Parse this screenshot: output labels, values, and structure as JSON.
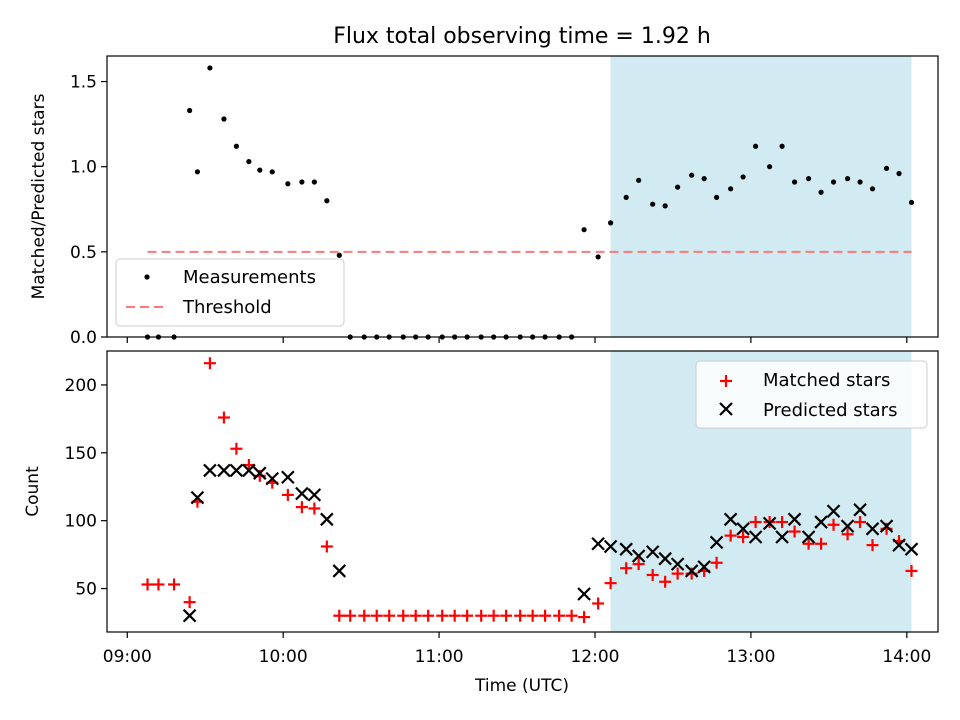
{
  "chart_data": [
    {
      "id": "top",
      "type": "scatter",
      "title": "Flux total observing time = 1.92 h",
      "xlabel": "",
      "ylabel": "Matched/Predicted stars",
      "xlim_hours": [
        8.87,
        14.2
      ],
      "ylim": [
        0,
        1.65
      ],
      "yticks": [
        0.0,
        0.5,
        1.0,
        1.5
      ],
      "ytick_labels": [
        "0.0",
        "0.5",
        "1.0",
        "1.5"
      ],
      "shaded_region_hours": [
        12.1,
        14.03
      ],
      "threshold": {
        "value": 0.5,
        "x_range_hours": [
          9.13,
          14.03
        ],
        "name": "Threshold",
        "color": "#ff7777"
      },
      "legend": {
        "placement": "lower-left",
        "entries": [
          "Measurements",
          "Threshold"
        ]
      },
      "series": [
        {
          "name": "Measurements",
          "color": "#000000",
          "x_hours": [
            9.13,
            9.2,
            9.3,
            9.4,
            9.45,
            9.53,
            9.62,
            9.7,
            9.78,
            9.85,
            9.93,
            10.03,
            10.12,
            10.2,
            10.28,
            10.36,
            10.43,
            10.52,
            10.6,
            10.68,
            10.77,
            10.85,
            10.93,
            11.02,
            11.1,
            11.18,
            11.27,
            11.35,
            11.43,
            11.52,
            11.6,
            11.68,
            11.77,
            11.85,
            11.93,
            12.02,
            12.1,
            12.2,
            12.28,
            12.37,
            12.45,
            12.53,
            12.62,
            12.7,
            12.78,
            12.87,
            12.95,
            13.03,
            13.12,
            13.2,
            13.28,
            13.37,
            13.45,
            13.53,
            13.62,
            13.7,
            13.78,
            13.87,
            13.95,
            14.03
          ],
          "y": [
            0,
            0,
            0,
            1.33,
            0.97,
            1.58,
            1.28,
            1.12,
            1.03,
            0.98,
            0.97,
            0.9,
            0.91,
            0.91,
            0.8,
            0.48,
            0,
            0,
            0,
            0,
            0,
            0,
            0,
            0,
            0,
            0,
            0,
            0,
            0,
            0,
            0,
            0,
            0,
            0,
            0.63,
            0.47,
            0.67,
            0.82,
            0.92,
            0.78,
            0.77,
            0.88,
            0.95,
            0.93,
            0.82,
            0.87,
            0.94,
            1.12,
            1.0,
            1.12,
            0.91,
            0.93,
            0.85,
            0.91,
            0.93,
            0.91,
            0.87,
            0.99,
            0.96,
            0.79
          ]
        }
      ]
    },
    {
      "id": "bottom",
      "type": "scatter",
      "title": "",
      "xlabel": "Time (UTC)",
      "ylabel": "Count",
      "xlim_hours": [
        8.87,
        14.2
      ],
      "ylim": [
        18,
        225
      ],
      "yticks": [
        50,
        100,
        150,
        200
      ],
      "ytick_labels": [
        "50",
        "100",
        "150",
        "200"
      ],
      "xticks_hours": [
        9,
        10,
        11,
        12,
        13,
        14
      ],
      "xtick_labels": [
        "09:00",
        "10:00",
        "11:00",
        "12:00",
        "13:00",
        "14:00"
      ],
      "shaded_region_hours": [
        12.1,
        14.03
      ],
      "legend": {
        "placement": "upper-right",
        "entries": [
          "Matched stars",
          "Predicted stars"
        ]
      },
      "series": [
        {
          "name": "Matched stars",
          "marker": "+",
          "color": "#ff0000",
          "x_hours": [
            9.13,
            9.2,
            9.3,
            9.4,
            9.45,
            9.53,
            9.62,
            9.7,
            9.78,
            9.85,
            9.93,
            10.03,
            10.12,
            10.2,
            10.28,
            10.36,
            10.43,
            10.52,
            10.6,
            10.68,
            10.77,
            10.85,
            10.93,
            11.02,
            11.1,
            11.18,
            11.27,
            11.35,
            11.43,
            11.52,
            11.6,
            11.68,
            11.77,
            11.85,
            11.93,
            12.02,
            12.1,
            12.2,
            12.28,
            12.37,
            12.45,
            12.53,
            12.62,
            12.7,
            12.78,
            12.87,
            12.95,
            13.03,
            13.12,
            13.2,
            13.28,
            13.37,
            13.45,
            13.53,
            13.62,
            13.7,
            13.78,
            13.87,
            13.95,
            14.03
          ],
          "y": [
            53,
            53,
            53,
            40,
            114,
            216,
            176,
            153,
            141,
            133,
            128,
            119,
            110,
            109,
            81,
            30,
            30,
            30,
            30,
            30,
            30,
            30,
            30,
            30,
            30,
            30,
            30,
            30,
            30,
            30,
            30,
            30,
            30,
            30,
            29,
            39,
            54,
            65,
            68,
            60,
            55,
            61,
            61,
            63,
            69,
            89,
            88,
            99,
            99,
            99,
            92,
            83,
            83,
            97,
            90,
            99,
            82,
            94,
            85,
            63
          ]
        },
        {
          "name": "Predicted stars",
          "marker": "x",
          "color": "#000000",
          "x_hours": [
            9.4,
            9.45,
            9.53,
            9.62,
            9.7,
            9.78,
            9.85,
            9.93,
            10.03,
            10.12,
            10.2,
            10.28,
            10.36,
            11.93,
            12.02,
            12.1,
            12.2,
            12.28,
            12.37,
            12.45,
            12.53,
            12.62,
            12.7,
            12.78,
            12.87,
            12.95,
            13.03,
            13.12,
            13.2,
            13.28,
            13.37,
            13.45,
            13.53,
            13.62,
            13.7,
            13.78,
            13.87,
            13.95,
            14.03
          ],
          "y": [
            30,
            117,
            137,
            137,
            137,
            137,
            135,
            131,
            132,
            120,
            119,
            101,
            63,
            46,
            83,
            81,
            79,
            74,
            77,
            72,
            68,
            63,
            66,
            84,
            101,
            94,
            88,
            98,
            88,
            101,
            88,
            99,
            107,
            96,
            108,
            94,
            96,
            82,
            79
          ]
        }
      ]
    }
  ]
}
